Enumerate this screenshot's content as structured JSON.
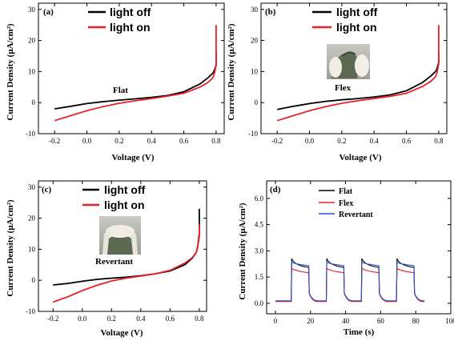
{
  "chart_data": [
    {
      "type": "line",
      "panel_label": "(a)",
      "xlabel": "Voltage (V)",
      "ylabel": "Current Density (μA/cm²)",
      "xlim": [
        -0.3,
        0.85
      ],
      "ylim": [
        -10,
        32
      ],
      "xticks": [
        -0.2,
        0.0,
        0.2,
        0.4,
        0.6,
        0.8
      ],
      "xtick_labels": [
        "-0.2",
        "0.0",
        "0.2",
        "0.4",
        "0.6",
        "0.8"
      ],
      "yticks": [
        -10,
        0,
        10,
        20,
        30
      ],
      "ytick_labels": [
        "-10",
        "0",
        "10",
        "20",
        "30"
      ],
      "legend_placement": "top-center",
      "annotation": "Flat",
      "series": [
        {
          "name": "light off",
          "color": "#000000",
          "x": [
            -0.2,
            -0.1,
            0.0,
            0.1,
            0.2,
            0.3,
            0.4,
            0.5,
            0.6,
            0.7,
            0.75,
            0.78,
            0.79,
            0.8,
            0.8
          ],
          "y": [
            -2,
            -1.2,
            -0.3,
            0.3,
            0.8,
            1.2,
            1.7,
            2.3,
            3.5,
            6.0,
            8.0,
            9.5,
            10.5,
            12,
            16
          ]
        },
        {
          "name": "light on",
          "color": "#e8202a",
          "x": [
            -0.2,
            -0.1,
            0.0,
            0.1,
            0.2,
            0.3,
            0.4,
            0.5,
            0.6,
            0.7,
            0.75,
            0.78,
            0.79,
            0.8,
            0.8
          ],
          "y": [
            -5.8,
            -4.2,
            -2.6,
            -1.3,
            -0.2,
            0.6,
            1.3,
            2.1,
            3.0,
            5.0,
            6.5,
            8.0,
            9.5,
            12,
            25
          ]
        }
      ]
    },
    {
      "type": "line",
      "panel_label": "(b)",
      "xlabel": "Voltage (V)",
      "ylabel": "Current Density (μA/cm²)",
      "xlim": [
        -0.3,
        0.85
      ],
      "ylim": [
        -10,
        32
      ],
      "xticks": [
        -0.2,
        0.0,
        0.2,
        0.4,
        0.6,
        0.8
      ],
      "xtick_labels": [
        "-0.2",
        "0.0",
        "0.2",
        "0.4",
        "0.6",
        "0.8"
      ],
      "yticks": [
        -10,
        0,
        10,
        20,
        30
      ],
      "ytick_labels": [
        "-10",
        "0",
        "10",
        "20",
        "30"
      ],
      "legend_placement": "top-center",
      "annotation": "Flex",
      "series": [
        {
          "name": "light off",
          "color": "#000000",
          "x": [
            -0.2,
            -0.1,
            0.0,
            0.1,
            0.2,
            0.3,
            0.4,
            0.5,
            0.6,
            0.7,
            0.75,
            0.78,
            0.79,
            0.8,
            0.8
          ],
          "y": [
            -2.2,
            -1.2,
            -0.3,
            0.4,
            0.9,
            1.3,
            1.8,
            2.5,
            3.8,
            6.5,
            8.5,
            10,
            11,
            13,
            16
          ]
        },
        {
          "name": "light on",
          "color": "#e8202a",
          "x": [
            -0.2,
            -0.1,
            0.0,
            0.1,
            0.2,
            0.3,
            0.4,
            0.5,
            0.6,
            0.7,
            0.75,
            0.78,
            0.79,
            0.8,
            0.8
          ],
          "y": [
            -5.8,
            -4.2,
            -2.6,
            -1.3,
            -0.2,
            0.6,
            1.3,
            2.0,
            3.0,
            5.2,
            6.8,
            8.3,
            9.8,
            12.5,
            25
          ]
        }
      ]
    },
    {
      "type": "line",
      "panel_label": "(c)",
      "xlabel": "Voltage (V)",
      "ylabel": "Current Density (μA/cm²)",
      "xlim": [
        -0.3,
        0.85
      ],
      "ylim": [
        -10,
        32
      ],
      "xticks": [
        -0.2,
        0.0,
        0.2,
        0.4,
        0.6,
        0.8
      ],
      "xtick_labels": [
        "-0.2",
        "0.0",
        "0.2",
        "0.4",
        "0.6",
        "0.8"
      ],
      "yticks": [
        -10,
        0,
        10,
        20,
        30
      ],
      "ytick_labels": [
        "-10",
        "0",
        "10",
        "20",
        "30"
      ],
      "legend_placement": "top-center",
      "annotation": "Revertant",
      "series": [
        {
          "name": "light off",
          "color": "#000000",
          "x": [
            -0.2,
            -0.1,
            0.0,
            0.1,
            0.2,
            0.3,
            0.4,
            0.5,
            0.6,
            0.7,
            0.75,
            0.78,
            0.79,
            0.8,
            0.8
          ],
          "y": [
            -1.5,
            -1.0,
            -0.3,
            0.3,
            0.7,
            1.0,
            1.5,
            2.1,
            3.0,
            5.0,
            7.0,
            9.0,
            11,
            15,
            23
          ]
        },
        {
          "name": "light on",
          "color": "#e8202a",
          "x": [
            -0.2,
            -0.1,
            0.0,
            0.1,
            0.2,
            0.3,
            0.4,
            0.5,
            0.6,
            0.7,
            0.75,
            0.78,
            0.79,
            0.8,
            0.8
          ],
          "y": [
            -7.0,
            -5.3,
            -3.3,
            -1.6,
            -0.2,
            0.7,
            1.4,
            2.1,
            3.2,
            5.5,
            7.2,
            9.0,
            11,
            14,
            18
          ]
        }
      ]
    },
    {
      "type": "line",
      "panel_label": "(d)",
      "xlabel": "Time (s)",
      "ylabel": "Current Density (μA/cm²)",
      "xlim": [
        -5,
        100
      ],
      "ylim": [
        -0.6,
        7.0
      ],
      "xticks": [
        0,
        20,
        40,
        60,
        80,
        100
      ],
      "xtick_labels": [
        "0",
        "20",
        "40",
        "60",
        "80",
        "100"
      ],
      "yticks": [
        0.0,
        1.5,
        3.0,
        4.5,
        6.0
      ],
      "ytick_labels": [
        "0.0",
        "1.5",
        "3.0",
        "4.5",
        "6.0"
      ],
      "legend_placement": "top-center",
      "series": [
        {
          "name": "Flat",
          "color": "#000000",
          "on_peak": 2.55,
          "on_end": 2.05,
          "off": 0.12
        },
        {
          "name": "Flex",
          "color": "#e8202a",
          "on_peak": 2.0,
          "on_end": 1.75,
          "off": 0.1
        },
        {
          "name": "Revertant",
          "color": "#2a4fd0",
          "on_peak": 2.35,
          "on_end": 2.15,
          "off": 0.14
        }
      ],
      "pulses_on_start": [
        9,
        29,
        49,
        69
      ],
      "pulse_duration": 10,
      "t_range": [
        0,
        85
      ]
    }
  ]
}
